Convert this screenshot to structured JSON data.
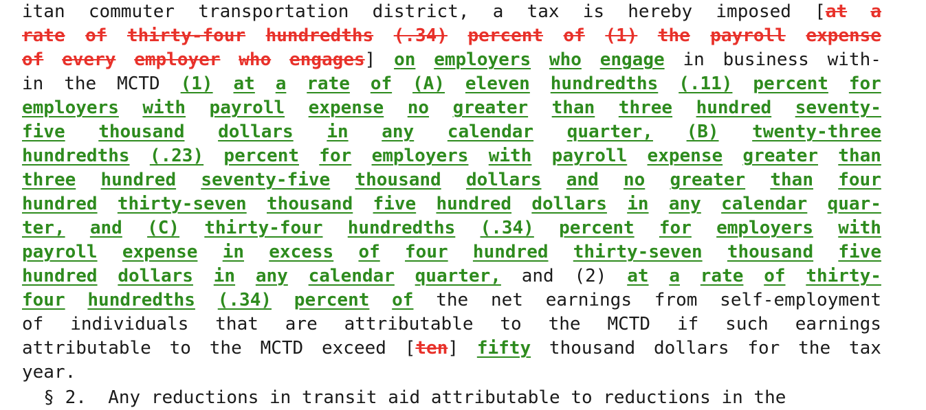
{
  "document": {
    "lines": [
      [
        {
          "t": "itan",
          "s": "plain"
        },
        {
          "t": "commuter",
          "s": "plain"
        },
        {
          "t": "transportation",
          "s": "plain"
        },
        {
          "t": "district,",
          "s": "plain"
        },
        {
          "t": "a",
          "s": "plain"
        },
        {
          "t": "tax",
          "s": "plain"
        },
        {
          "t": "is",
          "s": "plain"
        },
        {
          "t": "hereby",
          "s": "plain"
        },
        {
          "t": "imposed",
          "s": "plain"
        },
        {
          "t": "[",
          "s": "plain"
        },
        {
          "t": "at",
          "s": "del"
        },
        {
          "t": "a",
          "s": "del"
        }
      ],
      [
        {
          "t": "rate",
          "s": "del"
        },
        {
          "t": "of",
          "s": "del"
        },
        {
          "t": "thirty-four",
          "s": "del"
        },
        {
          "t": "hundredths",
          "s": "del"
        },
        {
          "t": "(.34)",
          "s": "del"
        },
        {
          "t": "percent",
          "s": "del"
        },
        {
          "t": "of",
          "s": "del"
        },
        {
          "t": "(1)",
          "s": "del"
        },
        {
          "t": "the",
          "s": "del"
        },
        {
          "t": "payroll",
          "s": "del"
        },
        {
          "t": "expense",
          "s": "del"
        }
      ],
      [
        {
          "t": "of",
          "s": "del"
        },
        {
          "t": "every",
          "s": "del"
        },
        {
          "t": "employer",
          "s": "del"
        },
        {
          "t": "who",
          "s": "del"
        },
        {
          "t": "engages",
          "s": "del"
        },
        {
          "t": "]",
          "s": "plain"
        },
        {
          "t": "on",
          "s": "ins"
        },
        {
          "t": "employers",
          "s": "ins"
        },
        {
          "t": "who",
          "s": "ins"
        },
        {
          "t": "engage",
          "s": "ins"
        },
        {
          "t": "in",
          "s": "plain"
        },
        {
          "t": "business",
          "s": "plain"
        },
        {
          "t": "with-",
          "s": "plain"
        }
      ],
      [
        {
          "t": "in",
          "s": "plain"
        },
        {
          "t": "the",
          "s": "plain"
        },
        {
          "t": "MCTD",
          "s": "plain"
        },
        {
          "t": "(1)",
          "s": "ins"
        },
        {
          "t": "at",
          "s": "ins"
        },
        {
          "t": "a",
          "s": "ins"
        },
        {
          "t": "rate",
          "s": "ins"
        },
        {
          "t": "of",
          "s": "ins"
        },
        {
          "t": "(A)",
          "s": "ins"
        },
        {
          "t": "eleven",
          "s": "ins"
        },
        {
          "t": "hundredths",
          "s": "ins"
        },
        {
          "t": "(.11)",
          "s": "ins"
        },
        {
          "t": "percent",
          "s": "ins"
        },
        {
          "t": "for",
          "s": "ins"
        }
      ],
      [
        {
          "t": "employers",
          "s": "ins"
        },
        {
          "t": "with",
          "s": "ins"
        },
        {
          "t": "payroll",
          "s": "ins"
        },
        {
          "t": "expense",
          "s": "ins"
        },
        {
          "t": "no",
          "s": "ins"
        },
        {
          "t": "greater",
          "s": "ins"
        },
        {
          "t": "than",
          "s": "ins"
        },
        {
          "t": "three",
          "s": "ins"
        },
        {
          "t": "hundred",
          "s": "ins"
        },
        {
          "t": "seventy-",
          "s": "ins"
        }
      ],
      [
        {
          "t": "five",
          "s": "ins"
        },
        {
          "t": "thousand",
          "s": "ins"
        },
        {
          "t": "dollars",
          "s": "ins"
        },
        {
          "t": "in",
          "s": "ins"
        },
        {
          "t": "any",
          "s": "ins"
        },
        {
          "t": "calendar",
          "s": "ins"
        },
        {
          "t": "quarter,",
          "s": "ins"
        },
        {
          "t": "(B)",
          "s": "ins"
        },
        {
          "t": "twenty-three",
          "s": "ins"
        }
      ],
      [
        {
          "t": "hundredths",
          "s": "ins"
        },
        {
          "t": "(.23)",
          "s": "ins"
        },
        {
          "t": "percent",
          "s": "ins"
        },
        {
          "t": "for",
          "s": "ins"
        },
        {
          "t": "employers",
          "s": "ins"
        },
        {
          "t": "with",
          "s": "ins"
        },
        {
          "t": "payroll",
          "s": "ins"
        },
        {
          "t": "expense",
          "s": "ins"
        },
        {
          "t": "greater",
          "s": "ins"
        },
        {
          "t": "than",
          "s": "ins"
        }
      ],
      [
        {
          "t": "three",
          "s": "ins"
        },
        {
          "t": "hundred",
          "s": "ins"
        },
        {
          "t": "seventy-five",
          "s": "ins"
        },
        {
          "t": "thousand",
          "s": "ins"
        },
        {
          "t": "dollars",
          "s": "ins"
        },
        {
          "t": "and",
          "s": "ins"
        },
        {
          "t": "no",
          "s": "ins"
        },
        {
          "t": "greater",
          "s": "ins"
        },
        {
          "t": "than",
          "s": "ins"
        },
        {
          "t": "four",
          "s": "ins"
        }
      ],
      [
        {
          "t": "hundred",
          "s": "ins"
        },
        {
          "t": "thirty-seven",
          "s": "ins"
        },
        {
          "t": "thousand",
          "s": "ins"
        },
        {
          "t": "five",
          "s": "ins"
        },
        {
          "t": "hundred",
          "s": "ins"
        },
        {
          "t": "dollars",
          "s": "ins"
        },
        {
          "t": "in",
          "s": "ins"
        },
        {
          "t": "any",
          "s": "ins"
        },
        {
          "t": "calendar",
          "s": "ins"
        },
        {
          "t": "quar-",
          "s": "ins"
        }
      ],
      [
        {
          "t": "ter,",
          "s": "ins"
        },
        {
          "t": "and",
          "s": "ins"
        },
        {
          "t": "(C)",
          "s": "ins"
        },
        {
          "t": "thirty-four",
          "s": "ins"
        },
        {
          "t": "hundredths",
          "s": "ins"
        },
        {
          "t": "(.34)",
          "s": "ins"
        },
        {
          "t": "percent",
          "s": "ins"
        },
        {
          "t": "for",
          "s": "ins"
        },
        {
          "t": "employers",
          "s": "ins"
        },
        {
          "t": "with",
          "s": "ins"
        }
      ],
      [
        {
          "t": "payroll",
          "s": "ins"
        },
        {
          "t": "expense",
          "s": "ins"
        },
        {
          "t": "in",
          "s": "ins"
        },
        {
          "t": "excess",
          "s": "ins"
        },
        {
          "t": "of",
          "s": "ins"
        },
        {
          "t": "four",
          "s": "ins"
        },
        {
          "t": "hundred",
          "s": "ins"
        },
        {
          "t": "thirty-seven",
          "s": "ins"
        },
        {
          "t": "thousand",
          "s": "ins"
        },
        {
          "t": "five",
          "s": "ins"
        }
      ],
      [
        {
          "t": "hundred",
          "s": "ins"
        },
        {
          "t": "dollars",
          "s": "ins"
        },
        {
          "t": "in",
          "s": "ins"
        },
        {
          "t": "any",
          "s": "ins"
        },
        {
          "t": "calendar",
          "s": "ins"
        },
        {
          "t": "quarter,",
          "s": "ins"
        },
        {
          "t": "and",
          "s": "plain"
        },
        {
          "t": "(2)",
          "s": "plain"
        },
        {
          "t": "at",
          "s": "ins"
        },
        {
          "t": "a",
          "s": "ins"
        },
        {
          "t": "rate",
          "s": "ins"
        },
        {
          "t": "of",
          "s": "ins"
        },
        {
          "t": "thirty-",
          "s": "ins"
        }
      ],
      [
        {
          "t": "four",
          "s": "ins"
        },
        {
          "t": "hundredths",
          "s": "ins"
        },
        {
          "t": "(.34)",
          "s": "ins"
        },
        {
          "t": "percent",
          "s": "ins"
        },
        {
          "t": "of",
          "s": "ins"
        },
        {
          "t": "the",
          "s": "plain"
        },
        {
          "t": "net",
          "s": "plain"
        },
        {
          "t": "earnings",
          "s": "plain"
        },
        {
          "t": "from",
          "s": "plain"
        },
        {
          "t": "self-employment",
          "s": "plain"
        }
      ],
      [
        {
          "t": "of",
          "s": "plain"
        },
        {
          "t": "individuals",
          "s": "plain"
        },
        {
          "t": "that",
          "s": "plain"
        },
        {
          "t": "are",
          "s": "plain"
        },
        {
          "t": "attributable",
          "s": "plain"
        },
        {
          "t": "to",
          "s": "plain"
        },
        {
          "t": "the",
          "s": "plain"
        },
        {
          "t": "MCTD",
          "s": "plain"
        },
        {
          "t": "if",
          "s": "plain"
        },
        {
          "t": "such",
          "s": "plain"
        },
        {
          "t": "earnings",
          "s": "plain"
        }
      ],
      [
        {
          "t": "attributable",
          "s": "plain"
        },
        {
          "t": "to",
          "s": "plain"
        },
        {
          "t": "the",
          "s": "plain"
        },
        {
          "t": "MCTD",
          "s": "plain"
        },
        {
          "t": "exceed",
          "s": "plain"
        },
        {
          "t": "[",
          "s": "plain"
        },
        {
          "t": "ten",
          "s": "del"
        },
        {
          "t": "]",
          "s": "plain"
        },
        {
          "t": "fifty",
          "s": "ins"
        },
        {
          "t": "thousand",
          "s": "plain"
        },
        {
          "t": "dollars",
          "s": "plain"
        },
        {
          "t": "for",
          "s": "plain"
        },
        {
          "t": "the",
          "s": "plain"
        },
        {
          "t": "tax",
          "s": "plain"
        }
      ],
      [
        {
          "t": "year.",
          "s": "plain"
        }
      ]
    ],
    "partial_next_line": "  § 2.  Any reductions in transit aid attributable to reductions in the"
  },
  "colors": {
    "text": "#1a1a1a",
    "deleted": "#e8312a",
    "inserted": "#2e8b1e",
    "background": "#ffffff"
  }
}
